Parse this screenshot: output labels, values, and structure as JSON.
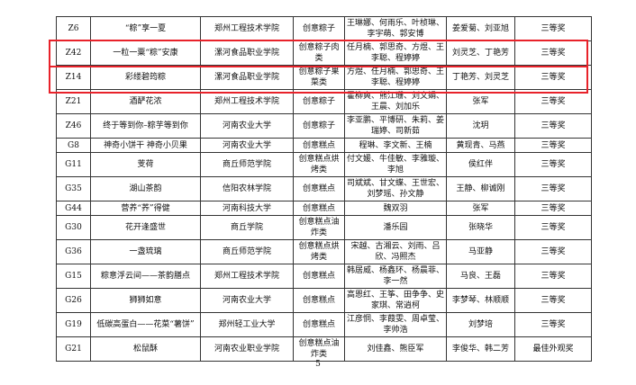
{
  "rows": [
    {
      "id": "Z6",
      "title": "“粽”享一夏",
      "school": "郑州工程技术学院",
      "category": "创意粽子",
      "members": "王琳娜、何雨乐、叶桢琳、李宇萌、郭安博",
      "advisors": "姜爱菊、刘亚旭",
      "award": "三等奖"
    },
    {
      "id": "Z42",
      "title": "一粒一粟“粽”安康",
      "school": "漯河食品职业学院",
      "category": "创意粽子肉类",
      "members": "任月楠、郭思奇、方煜、王李聪、程婷婷",
      "advisors": "刘灵芝、丁艳芳",
      "award": "三等奖",
      "highlighted": true
    },
    {
      "id": "Z14",
      "title": "彩缕碧筠粽",
      "school": "漯河食品职业学院",
      "category": "创意粽子果菜类",
      "members": "方煜、任月楠、郭思奇、王李聪、程婷婷",
      "advisors": "丁艳芳、刘灵芝",
      "award": "三等奖",
      "highlighted": true
    },
    {
      "id": "Z21",
      "title": "酒酽花浓",
      "school": "郑州工程技术学院",
      "category": "创意粽子",
      "members": "霍柳爽、熊江珊、刘文娟、王晨、刘加乐",
      "advisors": "张军",
      "award": "三等奖"
    },
    {
      "id": "Z46",
      "title": "终于等到你–粽芋等到你",
      "school": "河南农业大学",
      "category": "创意粽子",
      "members": "李亚鹏、平博研、朱莉、姜瑞婷、司新茹",
      "advisors": "沈玥",
      "award": "三等奖"
    },
    {
      "id": "G8",
      "title": "神奇小饼干 神奇小贝果",
      "school": "河南农业大学",
      "category": "创意糕点",
      "members": "程琳、李文新、王楠",
      "advisors": "黄现青、马燕",
      "award": "三等奖"
    },
    {
      "id": "G11",
      "title": "芰荷",
      "school": "商丘师范学院",
      "category": "创意糕点烘烤类",
      "members": "付文媛、牛佳敏、李雅璇、李旭",
      "advisors": "侯红伴",
      "award": "三等奖"
    },
    {
      "id": "G35",
      "title": "湖山茶韵",
      "school": "信阳农林学院",
      "category": "创意糕点",
      "members": "司斌斌、甘文蝶、王世宏、刘梦瑶、孙文静",
      "advisors": "王静、柳诚刚",
      "award": "三等奖"
    },
    {
      "id": "G44",
      "title": "营养“荞”得健",
      "school": "河南科技大学",
      "category": "创意糕点",
      "members": "魏双羽",
      "advisors": "张军",
      "award": "三等奖"
    },
    {
      "id": "G30",
      "title": "花开逢盛世",
      "school": "商丘学院",
      "category": "创意糕点油炸类",
      "members": "潘乐园",
      "advisors": "张晓华",
      "award": "三等奖"
    },
    {
      "id": "G36",
      "title": "一盏琉璃",
      "school": "商丘师范学院",
      "category": "创意糕点烘烤类",
      "members": "宋越、古湘云、刘雨、吕欣、冯照杰",
      "advisors": "马亚静",
      "award": "三等奖"
    },
    {
      "id": "G15",
      "title": "粽意浮云间——茶韵膳点",
      "school": "郑州工程技术学院",
      "category": "创意糕点",
      "members": "韩居威、杨鑫环、杨晨菲、李一然",
      "advisors": "马良、王磊",
      "award": "三等奖"
    },
    {
      "id": "G26",
      "title": "狮狮如意",
      "school": "河南农业大学",
      "category": "创意糕点",
      "members": "高恩红、王筝、田争争、史家琪、常逍柯",
      "advisors": "李梦琴、林顺顺",
      "award": "三等奖"
    },
    {
      "id": "G19",
      "title": "低碳高蛋白——花菜“薯饼”",
      "school": "郑州轻工业大学",
      "category": "创意糕点",
      "members": "江彦恫、李葭雯、周卓莹、李帅浩",
      "advisors": "刘梦培",
      "award": "三等奖"
    },
    {
      "id": "G21",
      "title": "松鼠酥",
      "school": "河南农业职业学院",
      "category": "创意糕点油炸类",
      "members": "刘佳鑫、熊臣军",
      "advisors": "李俊华、韩二芳",
      "award": "最佳外观奖"
    }
  ],
  "page_number": "5",
  "highlight_color": "#e8222a"
}
